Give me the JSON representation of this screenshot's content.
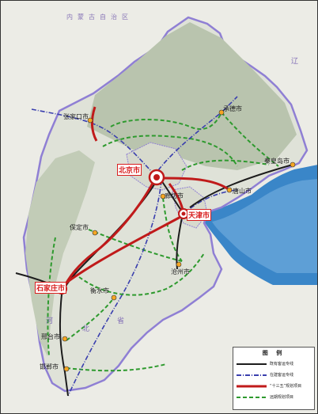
{
  "map": {
    "region_label_north": "内蒙古自治区",
    "province_label_hebei": [
      "河",
      "北",
      "省"
    ],
    "province_label_liaoning": "辽",
    "colors": {
      "land": "#dfe2d8",
      "mountain": "#b9c4ae",
      "sea": "#3a86c8",
      "boundary": "#8f7fd4",
      "built_rail": "#1c1c1c",
      "planned_rail": "#3a3fae",
      "key_project": "#c01a1a",
      "far_planned": "#2e9a2e"
    }
  },
  "cities": {
    "major": [
      {
        "id": "beijing",
        "name": "北京市"
      },
      {
        "id": "tianjin",
        "name": "天津市"
      },
      {
        "id": "shijiazhuang",
        "name": "石家庄市"
      }
    ],
    "other": [
      {
        "id": "zhangjiakou",
        "name": "张家口市"
      },
      {
        "id": "chengde",
        "name": "承德市"
      },
      {
        "id": "qinhuangdao",
        "name": "秦皇岛市"
      },
      {
        "id": "tangshan",
        "name": "唐山市"
      },
      {
        "id": "langfang",
        "name": "廊坊市"
      },
      {
        "id": "baoding",
        "name": "保定市"
      },
      {
        "id": "cangzhou",
        "name": "沧州市"
      },
      {
        "id": "hengshui",
        "name": "衡水市"
      },
      {
        "id": "xingtai",
        "name": "邢台市"
      },
      {
        "id": "handan",
        "name": "邯郸市"
      }
    ]
  },
  "legend": {
    "title": "图 例",
    "items": [
      {
        "label": "既有客运专线"
      },
      {
        "label": "在建客运专线"
      },
      {
        "label": "“十三五”规划项目"
      },
      {
        "label": "远期规划项目"
      }
    ]
  }
}
